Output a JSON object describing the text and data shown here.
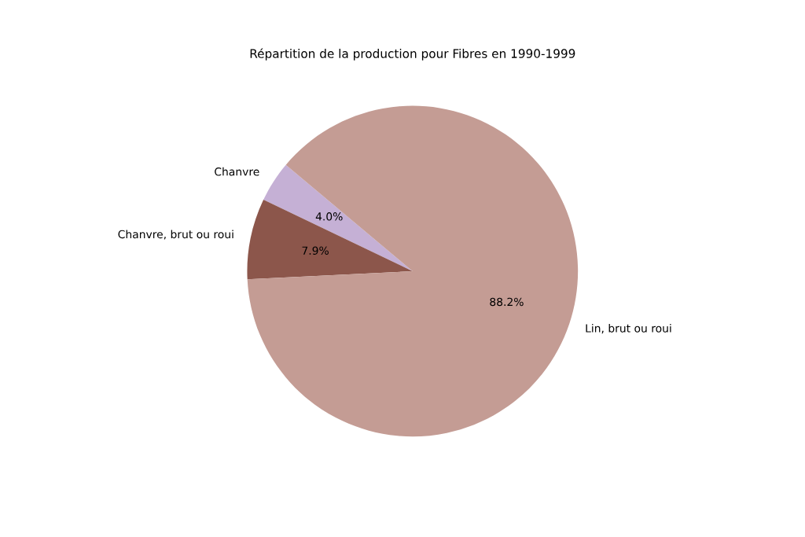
{
  "chart_data": {
    "type": "pie",
    "title": "Répartition de la production pour Fibres en 1990-1999",
    "categories": [
      "Chanvre",
      "Chanvre, brut ou roui",
      "Lin, brut ou roui"
    ],
    "values": [
      4.0,
      7.9,
      88.2
    ],
    "colors": [
      "#c5b0d5",
      "#8c564b",
      "#c49c94"
    ],
    "value_labels": [
      "4.0%",
      "7.9%",
      "88.2%"
    ]
  }
}
